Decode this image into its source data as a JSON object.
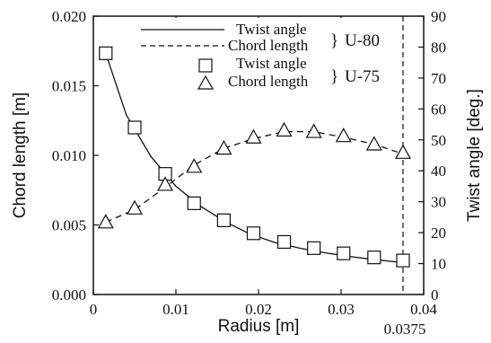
{
  "chart_data": {
    "type": "line",
    "xlabel": "Radius [m]",
    "ylabel_left": "Chord length [m]",
    "ylabel_right": "Twist angle [deg.]",
    "xlim": [
      0,
      0.04
    ],
    "ylim_left": [
      0,
      0.02
    ],
    "ylim_right": [
      0,
      90
    ],
    "x_ticks": [
      "0",
      "0.01",
      "0.02",
      "0.03",
      "0.04"
    ],
    "y_left_ticks": [
      "0.000",
      "0.005",
      "0.010",
      "0.015",
      "0.020"
    ],
    "y_right_ticks": [
      "0",
      "10",
      "20",
      "30",
      "40",
      "50",
      "60",
      "70",
      "80",
      "90"
    ],
    "extra_x_tick_label": "0.0375",
    "vertical_line_x": 0.0375,
    "grid": false,
    "legend_position": "top-right",
    "legend": {
      "items": [
        {
          "label": "Twist angle",
          "style": "solid-line"
        },
        {
          "label": "Chord length",
          "style": "dashed-line"
        },
        {
          "label": "Twist angle",
          "style": "square-marker"
        },
        {
          "label": "Chord length",
          "style": "triangle-marker"
        }
      ],
      "groups": [
        {
          "brace": "}",
          "label": "U-80"
        },
        {
          "brace": "}",
          "label": "U-75"
        }
      ]
    },
    "series": [
      {
        "name": "Twist angle",
        "model": "U-80",
        "axis": "right",
        "style": "solid",
        "x": [
          0.0015,
          0.004,
          0.007,
          0.01,
          0.013,
          0.016,
          0.019,
          0.022,
          0.025,
          0.028,
          0.031,
          0.034,
          0.0375
        ],
        "y": [
          78.0,
          58.0,
          44.5,
          35.0,
          28.5,
          23.5,
          19.5,
          16.8,
          15.0,
          13.5,
          12.3,
          11.3,
          10.3
        ]
      },
      {
        "name": "Chord length",
        "model": "U-80",
        "axis": "left",
        "style": "dashed",
        "x": [
          0.0015,
          0.005,
          0.0087,
          0.0122,
          0.0158,
          0.0194,
          0.0231,
          0.0267,
          0.0303,
          0.034,
          0.0375
        ],
        "y": [
          0.0052,
          0.0061,
          0.0077,
          0.0093,
          0.0105,
          0.0112,
          0.0117,
          0.0117,
          0.0113,
          0.0108,
          0.0101
        ]
      },
      {
        "name": "Twist angle",
        "model": "U-75",
        "axis": "right",
        "marker": "square",
        "x": [
          0.0015,
          0.005,
          0.0087,
          0.0122,
          0.0158,
          0.0194,
          0.0231,
          0.0267,
          0.0303,
          0.034,
          0.0375
        ],
        "y": [
          78.0,
          54.0,
          39.0,
          29.5,
          24.0,
          19.8,
          17.0,
          15.0,
          13.3,
          12.0,
          11.0
        ]
      },
      {
        "name": "Chord length",
        "model": "U-75",
        "axis": "left",
        "marker": "triangle",
        "x": [
          0.0015,
          0.005,
          0.0087,
          0.0122,
          0.0158,
          0.0194,
          0.0231,
          0.0267,
          0.0303,
          0.034,
          0.0375
        ],
        "y": [
          0.0052,
          0.0062,
          0.0079,
          0.0092,
          0.0105,
          0.0113,
          0.0118,
          0.0117,
          0.0114,
          0.0108,
          0.0102
        ]
      }
    ]
  }
}
